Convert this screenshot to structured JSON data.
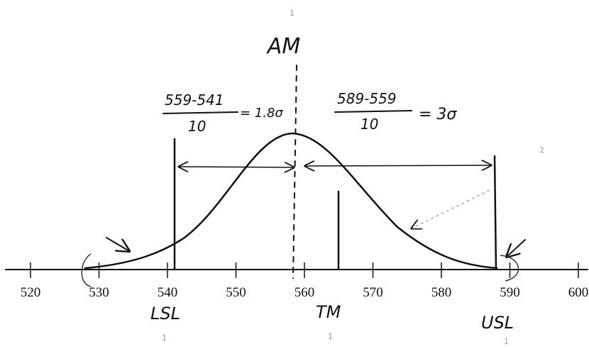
{
  "mean_label": "AM",
  "left_calc": {
    "numerator": "559-541",
    "denominator": "10",
    "result": "= 1.8σ"
  },
  "right_calc": {
    "numerator": "589-559",
    "denominator": "10",
    "result": "= 3σ"
  },
  "axis": {
    "ticks": [
      520,
      530,
      540,
      550,
      560,
      570,
      580,
      590,
      600
    ]
  },
  "limits": {
    "lsl": "LSL",
    "tm": "TM",
    "usl": "USL"
  },
  "annotations": [
    "1",
    "1",
    "1",
    "1",
    "2"
  ]
}
